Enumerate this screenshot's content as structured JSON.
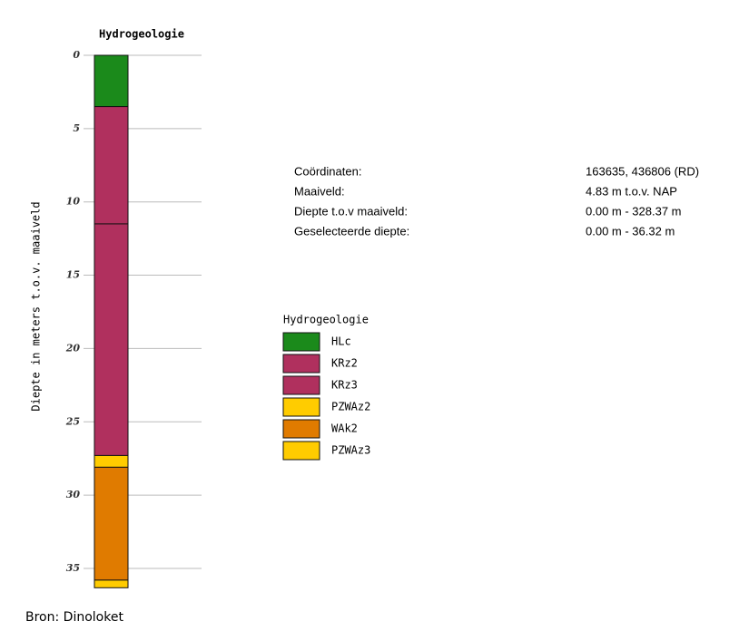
{
  "chart_data": {
    "type": "stacked-column",
    "title": "Hydrogeologie",
    "y_label": "Diepte in meters t.o.v. maaiveld",
    "ylim": [
      0,
      36.32
    ],
    "yticks": [
      0,
      5,
      10,
      15,
      20,
      25,
      30,
      35
    ],
    "inverted": true,
    "grid": true,
    "legend_title": "Hydrogeologie",
    "series": [
      {
        "name": "HLc",
        "color": "#1b8a1b",
        "values": [
          3.5
        ]
      },
      {
        "name": "KRz2",
        "color": "#b0305e",
        "values": [
          8.0
        ]
      },
      {
        "name": "KRz3",
        "color": "#b0305e",
        "values": [
          15.8
        ]
      },
      {
        "name": "PZWAz2",
        "color": "#ffcc00",
        "values": [
          0.8
        ]
      },
      {
        "name": "WAk2",
        "color": "#e07b00",
        "values": [
          7.7
        ]
      },
      {
        "name": "PZWAz3",
        "color": "#ffcc00",
        "values": [
          0.52
        ]
      }
    ]
  },
  "info": [
    {
      "label": "Coördinaten:",
      "value": "163635, 436806 (RD)"
    },
    {
      "label": "Maaiveld:",
      "value": "4.83 m t.o.v. NAP"
    },
    {
      "label": "Diepte t.o.v maaiveld:",
      "value": "0.00 m - 328.37 m"
    },
    {
      "label": "Geselecteerde diepte:",
      "value": "0.00 m - 36.32 m"
    }
  ],
  "source": "Bron: Dinoloket"
}
